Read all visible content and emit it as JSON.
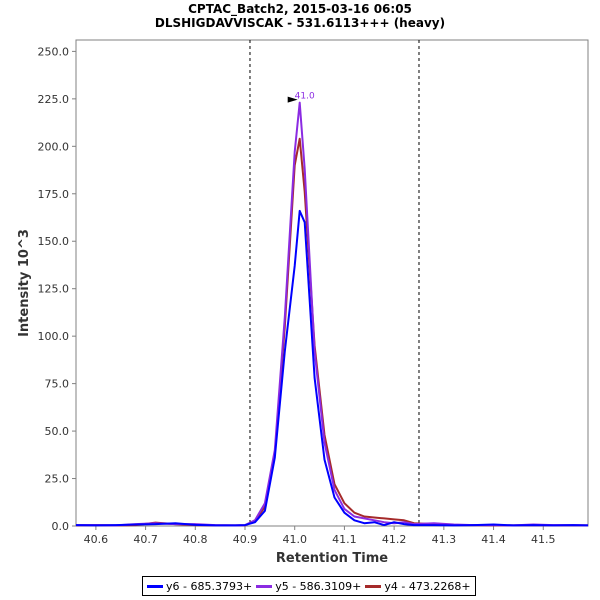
{
  "chart_data": {
    "type": "line",
    "title": "CPTAC_Batch2, 2015-03-16 06:05",
    "subtitle": "DLSHIGDAVVISCAK - 531.6113+++ (heavy)",
    "xlabel": "Retention Time",
    "ylabel": "Intensity 10^3",
    "xlim": [
      40.56,
      41.59
    ],
    "ylim": [
      0,
      256
    ],
    "x_ticks": [
      "40.6",
      "40.7",
      "40.8",
      "40.9",
      "41.0",
      "41.1",
      "41.2",
      "41.3",
      "41.4",
      "41.5"
    ],
    "y_ticks": [
      "0.0",
      "25.0",
      "50.0",
      "75.0",
      "100.0",
      "125.0",
      "150.0",
      "175.0",
      "200.0",
      "225.0",
      "250.0"
    ],
    "grid": false,
    "legend_position": "bottom",
    "boundaries": [
      40.91,
      41.25
    ],
    "annotation": {
      "label": "41.0",
      "x": 41.01,
      "y": 223,
      "color": "#8b2be2"
    },
    "series": [
      {
        "name": "y6 - 685.3793+",
        "color": "#0000ff",
        "x": [
          40.56,
          40.6,
          40.64,
          40.68,
          40.72,
          40.76,
          40.8,
          40.84,
          40.88,
          40.9,
          40.92,
          40.94,
          40.96,
          40.98,
          41.0,
          41.01,
          41.02,
          41.04,
          41.06,
          41.08,
          41.1,
          41.12,
          41.14,
          41.16,
          41.18,
          41.2,
          41.22,
          41.24,
          41.28,
          41.32,
          41.36,
          41.4,
          41.44,
          41.48,
          41.52,
          41.56,
          41.59
        ],
        "values": [
          0.5,
          0.3,
          0.5,
          0.8,
          1.0,
          1.5,
          0.6,
          0.3,
          0.3,
          0.5,
          2,
          8,
          36,
          92,
          137,
          166,
          160,
          78,
          35,
          15,
          7,
          3,
          1.5,
          2,
          0.5,
          2,
          1,
          0.5,
          0.5,
          0.3,
          0.5,
          0.8,
          0.3,
          0.5,
          0.3,
          0.5,
          0.3
        ]
      },
      {
        "name": "y5 - 586.3109+",
        "color": "#8b2be2",
        "x": [
          40.56,
          40.6,
          40.64,
          40.68,
          40.72,
          40.76,
          40.8,
          40.84,
          40.88,
          40.9,
          40.92,
          40.94,
          40.96,
          40.98,
          41.0,
          41.01,
          41.02,
          41.04,
          41.06,
          41.08,
          41.1,
          41.12,
          41.14,
          41.16,
          41.18,
          41.2,
          41.22,
          41.24,
          41.28,
          41.32,
          41.36,
          41.4,
          41.44,
          41.48,
          41.52,
          41.56,
          41.59
        ],
        "values": [
          0.5,
          0.5,
          0.3,
          1.0,
          1.5,
          1.0,
          1.0,
          0.5,
          0.3,
          0.5,
          3,
          12,
          40,
          110,
          197,
          223,
          188,
          92,
          44,
          19,
          9,
          5,
          4,
          3,
          2,
          1.5,
          2,
          1,
          1.5,
          0.8,
          0.5,
          0.5,
          0.3,
          0.8,
          0.5,
          0.5,
          0.3
        ]
      },
      {
        "name": "y4 - 473.2268+",
        "color": "#a52a2a",
        "x": [
          40.56,
          40.6,
          40.64,
          40.68,
          40.72,
          40.76,
          40.8,
          40.84,
          40.88,
          40.9,
          40.92,
          40.94,
          40.96,
          40.98,
          41.0,
          41.01,
          41.02,
          41.04,
          41.06,
          41.08,
          41.1,
          41.12,
          41.14,
          41.16,
          41.18,
          41.2,
          41.22,
          41.24,
          41.28,
          41.32,
          41.36,
          41.4,
          41.44,
          41.48,
          41.52,
          41.56,
          41.59
        ],
        "values": [
          0.3,
          0.5,
          0.3,
          0.5,
          1.8,
          1.0,
          0.5,
          0.3,
          0.3,
          0.3,
          3,
          10,
          38,
          105,
          190,
          204,
          176,
          95,
          48,
          22,
          12,
          7,
          5,
          4.5,
          4,
          3.5,
          3,
          1.5,
          1,
          0.5,
          0.5,
          0.3,
          0.3,
          0.5,
          0.3,
          0.3,
          0.3
        ]
      }
    ]
  }
}
